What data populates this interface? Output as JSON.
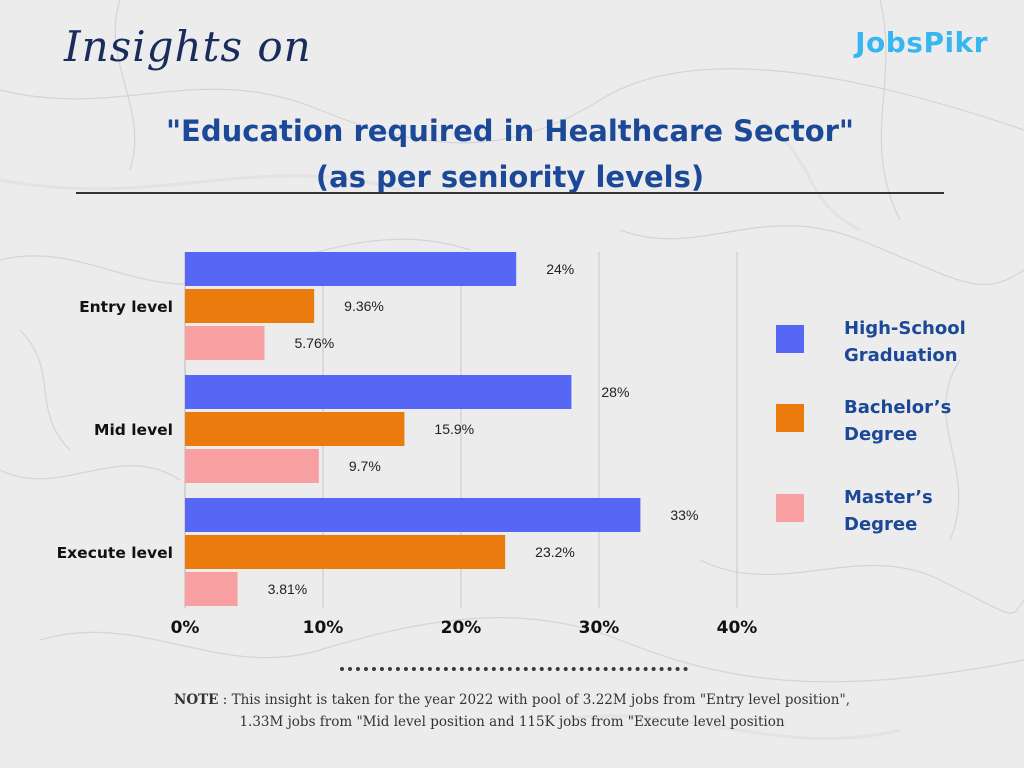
{
  "header": {
    "script_title": "Insights on",
    "brand": "JobsPikr",
    "title_line1": "\"Education required in Healthcare Sector\"",
    "title_line2": "(as per seniority levels)"
  },
  "colors": {
    "high_school": "#5567f4",
    "bachelors": "#ec7b0e",
    "masters": "#f8a0a1",
    "title": "#1c4898",
    "brand": "#37b7f0"
  },
  "chart_data": {
    "type": "bar",
    "orientation": "horizontal",
    "title": "\"Education required in Healthcare Sector\" (as per seniority levels)",
    "categories": [
      "Entry level",
      "Mid level",
      "Execute level"
    ],
    "series": [
      {
        "name": "High-School Graduation",
        "values": [
          24,
          28,
          33
        ],
        "labels": [
          "24%",
          "28%",
          "33%"
        ]
      },
      {
        "name": "Bachelor’s Degree",
        "values": [
          9.36,
          15.9,
          23.2
        ],
        "labels": [
          "9.36%",
          "15.9%",
          "23.2%"
        ]
      },
      {
        "name": "Master’s Degree",
        "values": [
          5.76,
          9.7,
          3.81
        ],
        "labels": [
          "5.76%",
          "9.7%",
          "3.81%"
        ]
      }
    ],
    "xlim": [
      0,
      40
    ],
    "xticks": [
      0,
      10,
      20,
      30,
      40
    ],
    "xtick_labels": [
      "0%",
      "10%",
      "20%",
      "30%",
      "40%"
    ],
    "grid": true,
    "legend_position": "right"
  },
  "legend": [
    {
      "line1": "High-School",
      "line2": "Graduation"
    },
    {
      "line1": "Bachelor’s",
      "line2": "Degree"
    },
    {
      "line1": "Master’s",
      "line2": "Degree"
    }
  ],
  "note": {
    "label": "NOTE",
    "line1": " : This insight is taken for the year 2022 with  pool of 3.22M jobs from \"Entry level position\",",
    "line2": "1.33M jobs from \"Mid level position and 115K jobs from \"Execute level position"
  }
}
